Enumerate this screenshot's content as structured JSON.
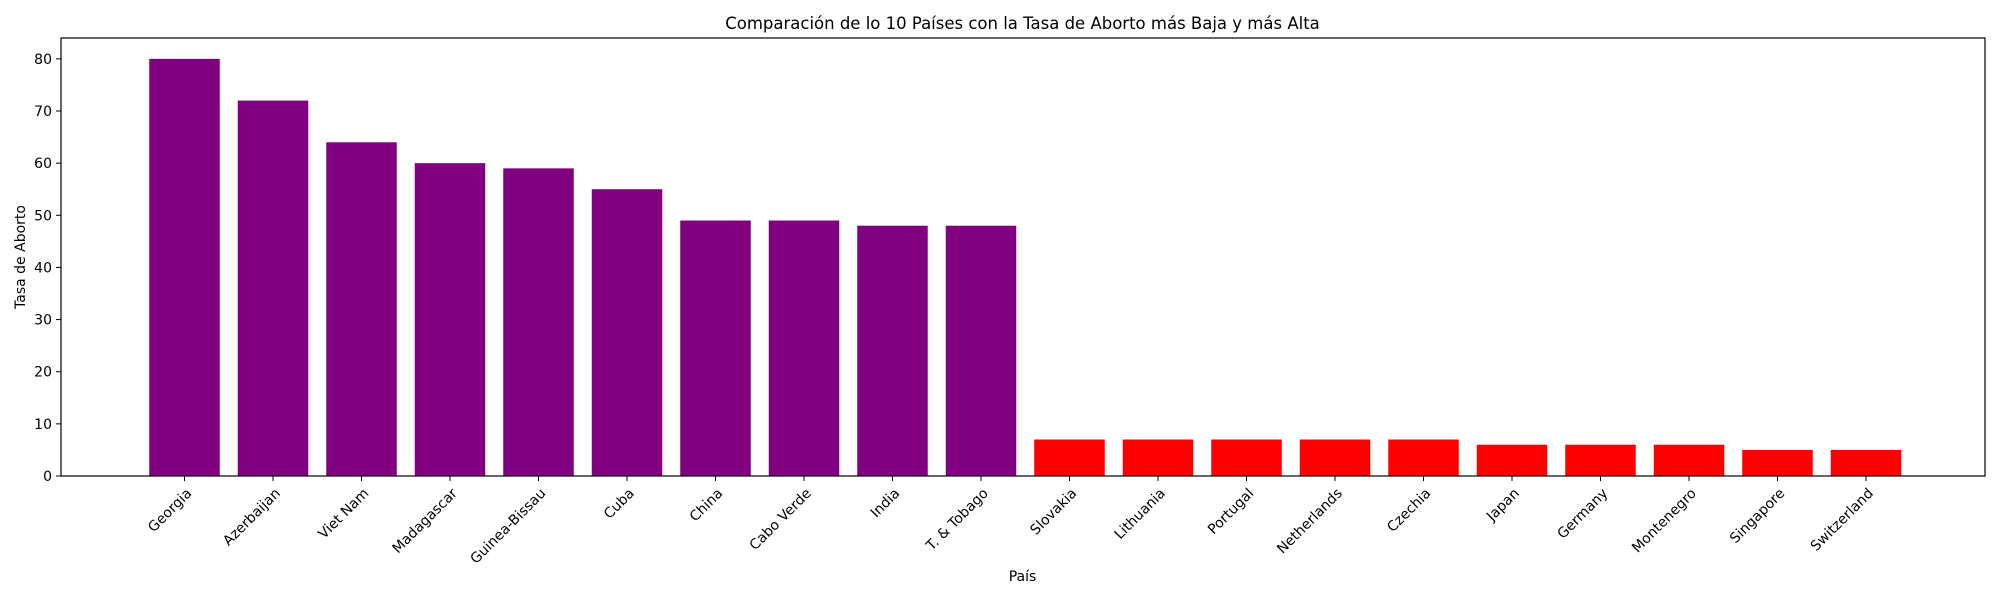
{
  "chart_data": {
    "type": "bar",
    "title": "Comparación de lo 10 Países con la Tasa de Aborto más Baja y más Alta",
    "xlabel": "País",
    "ylabel": "Tasa de Aborto",
    "ylim": [
      0,
      84
    ],
    "yticks": [
      0,
      10,
      20,
      30,
      40,
      50,
      60,
      70,
      80
    ],
    "grid": false,
    "categories": [
      "Georgia",
      "Azerbaijan",
      "Viet Nam",
      "Madagascar",
      "Guinea-Bissau",
      "Cuba",
      "China",
      "Cabo Verde",
      "India",
      "T. & Tobago",
      "Slovakia",
      "Lithuania",
      "Portugal",
      "Netherlands",
      "Czechia",
      "Japan",
      "Germany",
      "Montenegro",
      "Singapore",
      "Switzerland"
    ],
    "values": [
      80,
      72,
      64,
      60,
      59,
      55,
      49,
      49,
      48,
      48,
      7,
      7,
      7,
      7,
      7,
      6,
      6,
      6,
      5,
      5
    ],
    "colors": [
      "#800080",
      "#800080",
      "#800080",
      "#800080",
      "#800080",
      "#800080",
      "#800080",
      "#800080",
      "#800080",
      "#800080",
      "#ff0000",
      "#ff0000",
      "#ff0000",
      "#ff0000",
      "#ff0000",
      "#ff0000",
      "#ff0000",
      "#ff0000",
      "#ff0000",
      "#ff0000"
    ]
  }
}
